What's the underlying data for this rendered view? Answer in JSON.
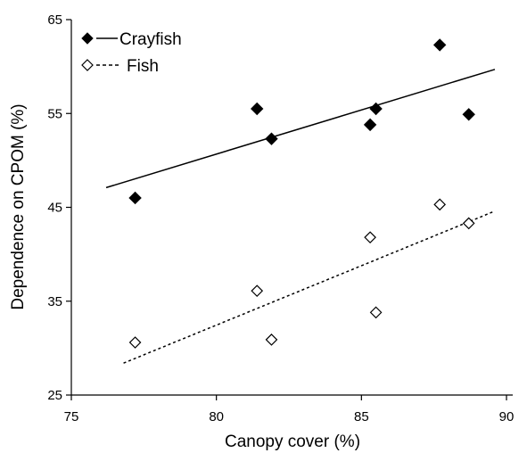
{
  "chart_data": {
    "type": "scatter",
    "xlabel": "Canopy cover (%)",
    "ylabel": "Dependence on CPOM (%)",
    "xlim": [
      75,
      90
    ],
    "ylim": [
      25,
      65
    ],
    "x_ticks": [
      75,
      80,
      85,
      90
    ],
    "y_ticks": [
      25,
      35,
      45,
      55,
      65
    ],
    "grid": false,
    "legend_position": "top-left",
    "series": [
      {
        "name": "Crayfish",
        "marker": "filled-diamond",
        "line_style": "solid",
        "color": "#000000",
        "points": [
          {
            "x": 77.2,
            "y": 46.0
          },
          {
            "x": 81.4,
            "y": 55.5
          },
          {
            "x": 81.9,
            "y": 52.3
          },
          {
            "x": 85.3,
            "y": 53.8
          },
          {
            "x": 85.5,
            "y": 55.5
          },
          {
            "x": 87.7,
            "y": 62.3
          },
          {
            "x": 88.7,
            "y": 54.9
          }
        ],
        "trend": {
          "x": [
            76.2,
            89.6
          ],
          "y": [
            47.1,
            59.7
          ]
        }
      },
      {
        "name": "Fish",
        "marker": "open-diamond",
        "line_style": "dashed",
        "color": "#000000",
        "points": [
          {
            "x": 77.2,
            "y": 30.6
          },
          {
            "x": 81.4,
            "y": 36.1
          },
          {
            "x": 81.9,
            "y": 30.9
          },
          {
            "x": 85.3,
            "y": 41.8
          },
          {
            "x": 85.5,
            "y": 33.8
          },
          {
            "x": 87.7,
            "y": 45.3
          },
          {
            "x": 88.7,
            "y": 43.3
          }
        ],
        "trend": {
          "x": [
            76.8,
            89.6
          ],
          "y": [
            28.4,
            44.6
          ]
        }
      }
    ]
  }
}
